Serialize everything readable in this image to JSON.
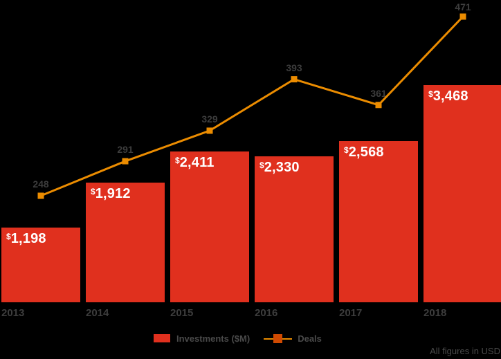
{
  "chart_data": {
    "type": "bar+line combo",
    "categories": [
      "2013",
      "2014",
      "2015",
      "2016",
      "2017",
      "2018"
    ],
    "series": [
      {
        "name": "Investments ($M)",
        "type": "bar",
        "color": "#E0301E",
        "values": [
          1198,
          1912,
          2411,
          2330,
          2568,
          3468
        ],
        "value_prefix": "$",
        "value_display": [
          "1,198",
          "1,912",
          "2,411",
          "2,330",
          "2,568",
          "3,468"
        ],
        "label_color": "#FFFFFF"
      },
      {
        "name": "Deals",
        "type": "line",
        "color": "#EB8C00",
        "marker": "square",
        "marker_color": "#EB8C00",
        "values": [
          248,
          291,
          329,
          393,
          361,
          471
        ],
        "value_display": [
          "248",
          "291",
          "329",
          "393",
          "361",
          "471"
        ],
        "label_color": "#3D3D3D"
      }
    ],
    "title": "",
    "xlabel": "",
    "ylabel": "",
    "ylim_bars": [
      0,
      3468
    ],
    "grid": false,
    "axis_lines": false,
    "background_color": "#000000",
    "legend_position": "bottom-center",
    "legend": [
      {
        "label": "Investments ($M)",
        "swatch": "filled-square",
        "color": "#E0301E"
      },
      {
        "label": "Deals",
        "swatch": "line-with-square",
        "line_color": "#EB8C00",
        "marker_color": "#D04A02"
      }
    ],
    "footnote": "All figures in USD"
  },
  "colors": {
    "bar_red": "#E0301E",
    "line_orange": "#EB8C00",
    "legend_marker_orange": "#D04A02",
    "label_gray": "#3D3D3D",
    "legend_text_gray": "#4A4A4A",
    "bar_label_white": "#FFFFFF",
    "background": "#000000"
  }
}
